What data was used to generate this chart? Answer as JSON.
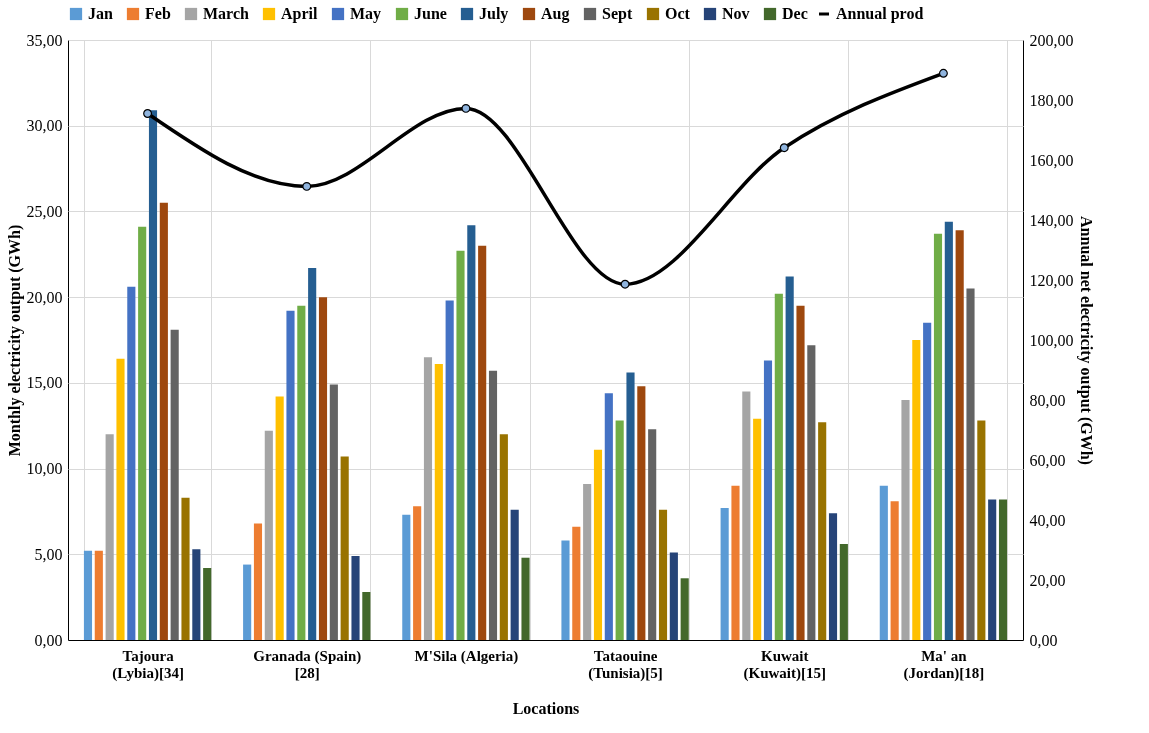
{
  "chart_data": {
    "type": "bar",
    "xlabel": "Locations",
    "ylabel": "Monthly electricity output (GWh)",
    "y2label": "Annual net electricity output (GWh)",
    "categories": [
      "Tajoura (Lybia)[34]",
      "Granada (Spain) [28]",
      "M'Sila (Algeria)",
      "Tataouine (Tunisia)[5]",
      "Kuwait (Kuwait)[15]",
      "Ma' an (Jordan)[18]"
    ],
    "series": [
      {
        "name": "Jan",
        "color": "#5b9bd5",
        "values": [
          5.2,
          4.4,
          7.3,
          5.8,
          7.7,
          9.0
        ]
      },
      {
        "name": "Feb",
        "color": "#ed7d31",
        "values": [
          5.2,
          6.8,
          7.8,
          6.6,
          9.0,
          8.1
        ]
      },
      {
        "name": "March",
        "color": "#a5a5a5",
        "values": [
          12.0,
          12.2,
          16.5,
          9.1,
          14.5,
          14.0
        ]
      },
      {
        "name": "April",
        "color": "#ffc000",
        "values": [
          16.4,
          14.2,
          16.1,
          11.1,
          12.9,
          17.5
        ]
      },
      {
        "name": "May",
        "color": "#4472c4",
        "values": [
          20.6,
          19.2,
          19.8,
          14.4,
          16.3,
          18.5
        ]
      },
      {
        "name": "June",
        "color": "#70ad47",
        "values": [
          24.1,
          19.5,
          22.7,
          12.8,
          20.2,
          23.7
        ]
      },
      {
        "name": "July",
        "color": "#255e91",
        "values": [
          30.9,
          21.7,
          24.2,
          15.6,
          21.2,
          24.4
        ]
      },
      {
        "name": "Aug",
        "color": "#9e480e",
        "values": [
          25.5,
          20.0,
          23.0,
          14.8,
          19.5,
          23.9
        ]
      },
      {
        "name": "Sept",
        "color": "#636363",
        "values": [
          18.1,
          14.9,
          15.7,
          12.3,
          17.2,
          20.5
        ]
      },
      {
        "name": "Oct",
        "color": "#997300",
        "values": [
          8.3,
          10.7,
          12.0,
          7.6,
          12.7,
          12.8
        ]
      },
      {
        "name": "Nov",
        "color": "#264478",
        "values": [
          5.3,
          4.9,
          7.6,
          5.1,
          7.4,
          8.2
        ]
      },
      {
        "name": "Dec",
        "color": "#43682b",
        "values": [
          4.2,
          2.8,
          4.8,
          3.6,
          5.6,
          8.2
        ]
      },
      {
        "name": "Annual prod",
        "type": "line",
        "axis": "y2",
        "color": "#000000",
        "marker": "circle",
        "values": [
          175.5,
          151.2,
          177.2,
          118.6,
          164.1,
          188.9
        ]
      }
    ],
    "ylim": [
      0,
      35
    ],
    "yticks": [
      {
        "value": 0,
        "label": "0,00"
      },
      {
        "value": 5,
        "label": "5,00"
      },
      {
        "value": 10,
        "label": "10,00"
      },
      {
        "value": 15,
        "label": "15,00"
      },
      {
        "value": 20,
        "label": "20,00"
      },
      {
        "value": 25,
        "label": "25,00"
      },
      {
        "value": 30,
        "label": "30,00"
      },
      {
        "value": 35,
        "label": "35,00"
      }
    ],
    "y2lim": [
      0,
      200
    ],
    "y2ticks": [
      {
        "value": 0,
        "label": "0,00"
      },
      {
        "value": 20,
        "label": "20,00"
      },
      {
        "value": 40,
        "label": "40,00"
      },
      {
        "value": 60,
        "label": "60,00"
      },
      {
        "value": 80,
        "label": "80,00"
      },
      {
        "value": 100,
        "label": "100,00"
      },
      {
        "value": 120,
        "label": "120,00"
      },
      {
        "value": 140,
        "label": "140,00"
      },
      {
        "value": 160,
        "label": "160,00"
      },
      {
        "value": 180,
        "label": "180,00"
      },
      {
        "value": 200,
        "label": "200,00"
      }
    ],
    "grid": true,
    "legend": "top"
  }
}
